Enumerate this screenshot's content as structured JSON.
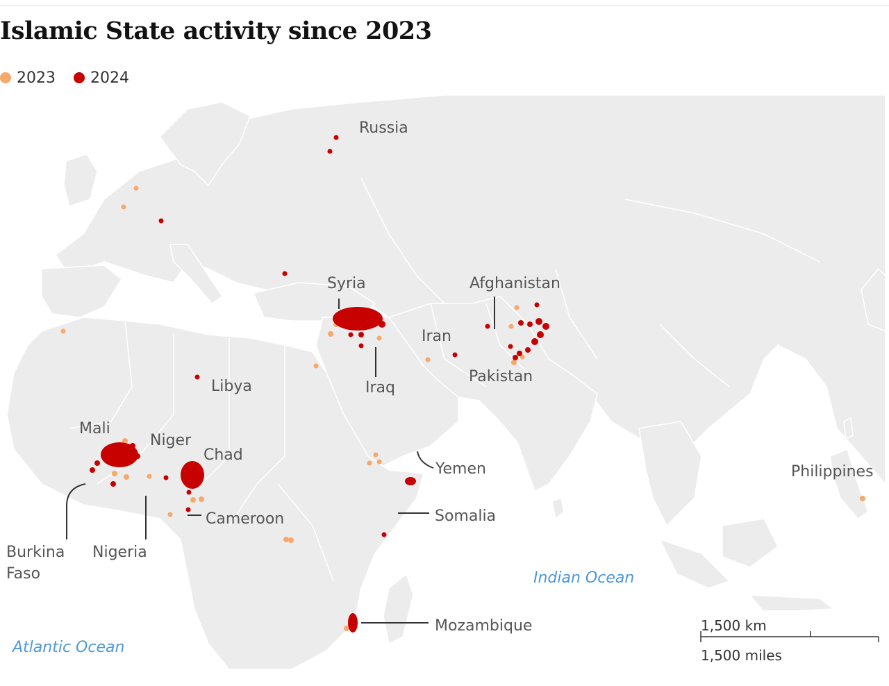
{
  "title": "Islamic State activity since 2023",
  "legend": [
    {
      "label": "2023",
      "color": "#f6a96a"
    },
    {
      "label": "2024",
      "color": "#c70000"
    }
  ],
  "colors": {
    "land": "#ececec",
    "border": "#ffffff",
    "sea": "#ffffff",
    "label": "#555555",
    "ocean_label": "#4c98d6"
  },
  "labels": {
    "russia": "Russia",
    "syria": "Syria",
    "afghanistan": "Afghanistan",
    "iran": "Iran",
    "iraq": "Iraq",
    "pakistan": "Pakistan",
    "libya": "Libya",
    "mali": "Mali",
    "niger": "Niger",
    "chad": "Chad",
    "yemen": "Yemen",
    "philippines": "Philippines",
    "cameroon": "Cameroon",
    "somalia": "Somalia",
    "burkina_line1": "Burkina",
    "burkina_line2": "Faso",
    "nigeria": "Nigeria",
    "mozambique": "Mozambique"
  },
  "oceans": {
    "indian": "Indian Ocean",
    "atlantic": "Atlantic Ocean"
  },
  "scale": {
    "km": "1,500 km",
    "miles": "1,500 miles"
  }
}
